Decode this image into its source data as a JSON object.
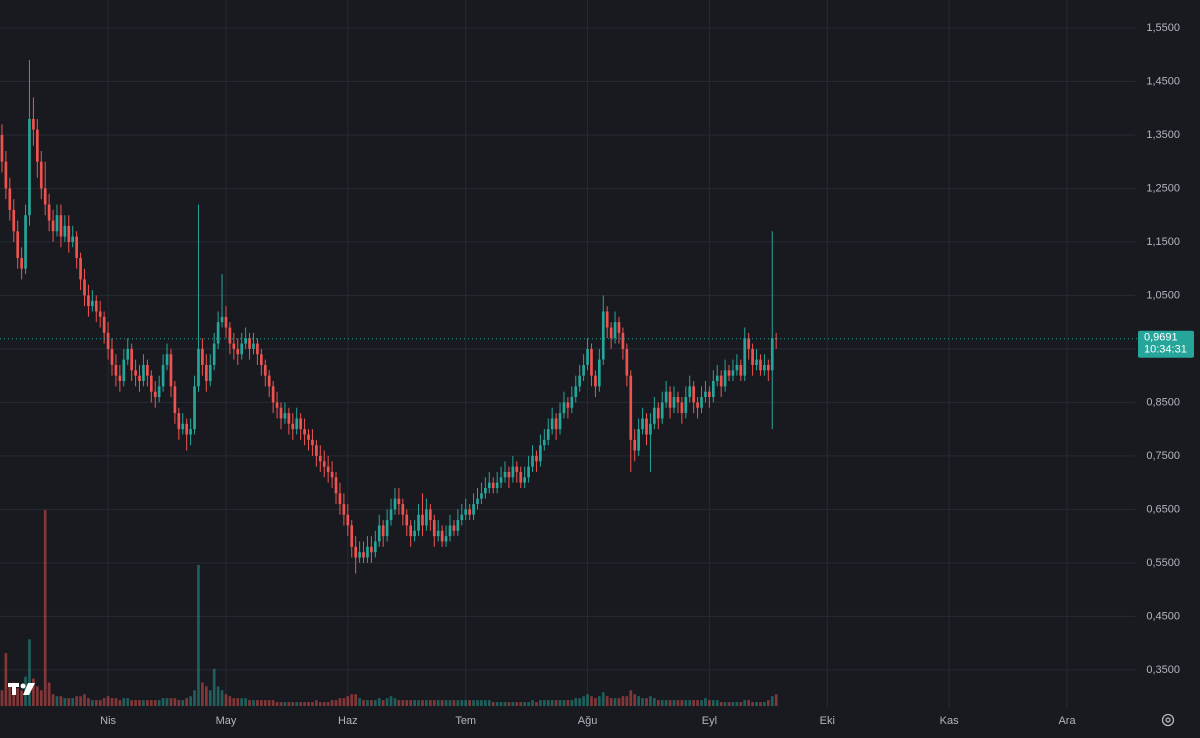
{
  "chart_data": {
    "type": "candlestick",
    "up_color": "#26a69a",
    "down_color": "#ef5350",
    "xlim": [
      0.5,
      289.3
    ],
    "xticks": [
      {
        "value": 28,
        "label": "Nis"
      },
      {
        "value": 58,
        "label": "May"
      },
      {
        "value": 89,
        "label": "Haz"
      },
      {
        "value": 119,
        "label": "Tem"
      },
      {
        "value": 150,
        "label": "Ağu"
      },
      {
        "value": 181,
        "label": "Eyl"
      },
      {
        "value": 211,
        "label": "Eki"
      },
      {
        "value": 242,
        "label": "Kas"
      },
      {
        "value": 272,
        "label": "Ara"
      }
    ],
    "ylim": [
      0.2787,
      1.6023
    ],
    "yticks": [
      {
        "value": 0.35,
        "label": "0,3500"
      },
      {
        "value": 0.45,
        "label": "0,4500"
      },
      {
        "value": 0.55,
        "label": "0,5500"
      },
      {
        "value": 0.65,
        "label": "0,6500"
      },
      {
        "value": 0.75,
        "label": "0,7500"
      },
      {
        "value": 0.85,
        "label": "0,8500"
      },
      {
        "value": 0.95,
        "label": "0,9500"
      },
      {
        "value": 1.05,
        "label": "1,0500"
      },
      {
        "value": 1.15,
        "label": "1,1500"
      },
      {
        "value": 1.25,
        "label": "1,2500"
      },
      {
        "value": 1.35,
        "label": "1,3500"
      },
      {
        "value": 1.45,
        "label": "1,4500"
      },
      {
        "value": 1.55,
        "label": "1,5500"
      }
    ],
    "grid": true,
    "last_price": {
      "value": 0.9691,
      "label": "0,9691"
    },
    "countdown": "10:34:31",
    "candles": [
      [
        1.4,
        1.42,
        1.33,
        1.35,
        6
      ],
      [
        1.35,
        1.37,
        1.28,
        1.3,
        8
      ],
      [
        1.3,
        1.32,
        1.23,
        1.25,
        27
      ],
      [
        1.25,
        1.27,
        1.19,
        1.21,
        10
      ],
      [
        1.21,
        1.23,
        1.15,
        1.17,
        12
      ],
      [
        1.17,
        1.19,
        1.1,
        1.12,
        9
      ],
      [
        1.12,
        1.14,
        1.08,
        1.1,
        8
      ],
      [
        1.1,
        1.22,
        1.09,
        1.2,
        15
      ],
      [
        1.2,
        1.49,
        1.18,
        1.38,
        34
      ],
      [
        1.38,
        1.42,
        1.33,
        1.36,
        14
      ],
      [
        1.36,
        1.38,
        1.27,
        1.3,
        10
      ],
      [
        1.3,
        1.32,
        1.23,
        1.25,
        8
      ],
      [
        1.25,
        1.3,
        1.2,
        1.22,
        100
      ],
      [
        1.22,
        1.24,
        1.17,
        1.19,
        12
      ],
      [
        1.19,
        1.21,
        1.15,
        1.17,
        6
      ],
      [
        1.17,
        1.22,
        1.16,
        1.2,
        5
      ],
      [
        1.2,
        1.22,
        1.14,
        1.16,
        5
      ],
      [
        1.16,
        1.2,
        1.15,
        1.18,
        4
      ],
      [
        1.18,
        1.2,
        1.13,
        1.15,
        4
      ],
      [
        1.15,
        1.18,
        1.14,
        1.16,
        4
      ],
      [
        1.16,
        1.17,
        1.1,
        1.12,
        5
      ],
      [
        1.12,
        1.13,
        1.06,
        1.08,
        5
      ],
      [
        1.08,
        1.1,
        1.03,
        1.05,
        6
      ],
      [
        1.05,
        1.07,
        1.01,
        1.03,
        4
      ],
      [
        1.03,
        1.06,
        1.02,
        1.04,
        3
      ],
      [
        1.04,
        1.05,
        1.0,
        1.02,
        3
      ],
      [
        1.02,
        1.04,
        0.99,
        1.01,
        3
      ],
      [
        1.01,
        1.02,
        0.96,
        0.98,
        4
      ],
      [
        0.98,
        1.0,
        0.93,
        0.95,
        5
      ],
      [
        0.95,
        0.97,
        0.9,
        0.92,
        4
      ],
      [
        0.92,
        0.94,
        0.88,
        0.9,
        4
      ],
      [
        0.9,
        0.92,
        0.87,
        0.89,
        3
      ],
      [
        0.89,
        0.95,
        0.88,
        0.93,
        4
      ],
      [
        0.93,
        0.97,
        0.92,
        0.95,
        4
      ],
      [
        0.95,
        0.96,
        0.89,
        0.91,
        3
      ],
      [
        0.91,
        0.93,
        0.88,
        0.9,
        3
      ],
      [
        0.9,
        0.92,
        0.87,
        0.89,
        3
      ],
      [
        0.89,
        0.94,
        0.88,
        0.92,
        3
      ],
      [
        0.92,
        0.93,
        0.88,
        0.9,
        3
      ],
      [
        0.9,
        0.91,
        0.85,
        0.87,
        3
      ],
      [
        0.87,
        0.89,
        0.84,
        0.86,
        3
      ],
      [
        0.86,
        0.9,
        0.85,
        0.88,
        3
      ],
      [
        0.88,
        0.94,
        0.87,
        0.92,
        4
      ],
      [
        0.92,
        0.96,
        0.91,
        0.94,
        4
      ],
      [
        0.94,
        0.95,
        0.86,
        0.88,
        4
      ],
      [
        0.88,
        0.89,
        0.81,
        0.83,
        4
      ],
      [
        0.83,
        0.84,
        0.78,
        0.8,
        3
      ],
      [
        0.8,
        0.83,
        0.79,
        0.81,
        3
      ],
      [
        0.81,
        0.82,
        0.76,
        0.79,
        4
      ],
      [
        0.79,
        0.82,
        0.77,
        0.8,
        5
      ],
      [
        0.8,
        0.9,
        0.79,
        0.88,
        8
      ],
      [
        0.88,
        1.22,
        0.87,
        0.95,
        72
      ],
      [
        0.95,
        0.97,
        0.9,
        0.92,
        12
      ],
      [
        0.92,
        0.94,
        0.87,
        0.89,
        10
      ],
      [
        0.89,
        0.94,
        0.88,
        0.92,
        8
      ],
      [
        0.92,
        0.98,
        0.91,
        0.96,
        19
      ],
      [
        0.96,
        1.02,
        0.95,
        1.0,
        10
      ],
      [
        1.0,
        1.09,
        0.99,
        1.01,
        8
      ],
      [
        1.01,
        1.03,
        0.97,
        0.99,
        6
      ],
      [
        0.99,
        1.0,
        0.94,
        0.96,
        5
      ],
      [
        0.96,
        0.98,
        0.93,
        0.95,
        4
      ],
      [
        0.95,
        0.97,
        0.92,
        0.94,
        4
      ],
      [
        0.94,
        0.98,
        0.93,
        0.96,
        4
      ],
      [
        0.96,
        0.99,
        0.95,
        0.97,
        4
      ],
      [
        0.97,
        0.98,
        0.93,
        0.95,
        3
      ],
      [
        0.95,
        0.98,
        0.94,
        0.96,
        3
      ],
      [
        0.96,
        0.97,
        0.92,
        0.94,
        3
      ],
      [
        0.94,
        0.95,
        0.9,
        0.92,
        3
      ],
      [
        0.92,
        0.93,
        0.88,
        0.9,
        3
      ],
      [
        0.9,
        0.91,
        0.86,
        0.88,
        3
      ],
      [
        0.88,
        0.89,
        0.83,
        0.85,
        3
      ],
      [
        0.85,
        0.87,
        0.82,
        0.84,
        2
      ],
      [
        0.84,
        0.85,
        0.8,
        0.82,
        2
      ],
      [
        0.82,
        0.85,
        0.81,
        0.83,
        2
      ],
      [
        0.83,
        0.84,
        0.79,
        0.81,
        2
      ],
      [
        0.81,
        0.83,
        0.78,
        0.8,
        2
      ],
      [
        0.8,
        0.84,
        0.79,
        0.82,
        2
      ],
      [
        0.82,
        0.83,
        0.78,
        0.8,
        2
      ],
      [
        0.8,
        0.82,
        0.77,
        0.79,
        2
      ],
      [
        0.79,
        0.8,
        0.76,
        0.78,
        2
      ],
      [
        0.78,
        0.8,
        0.75,
        0.77,
        2
      ],
      [
        0.77,
        0.78,
        0.73,
        0.75,
        3
      ],
      [
        0.75,
        0.77,
        0.72,
        0.74,
        2
      ],
      [
        0.74,
        0.76,
        0.71,
        0.73,
        2
      ],
      [
        0.73,
        0.75,
        0.7,
        0.72,
        2
      ],
      [
        0.72,
        0.74,
        0.69,
        0.71,
        3
      ],
      [
        0.71,
        0.72,
        0.66,
        0.68,
        3
      ],
      [
        0.68,
        0.7,
        0.64,
        0.66,
        4
      ],
      [
        0.66,
        0.68,
        0.62,
        0.64,
        4
      ],
      [
        0.64,
        0.66,
        0.6,
        0.62,
        5
      ],
      [
        0.62,
        0.63,
        0.56,
        0.58,
        6
      ],
      [
        0.58,
        0.6,
        0.53,
        0.56,
        6
      ],
      [
        0.56,
        0.59,
        0.55,
        0.57,
        4
      ],
      [
        0.57,
        0.59,
        0.55,
        0.56,
        3
      ],
      [
        0.56,
        0.6,
        0.55,
        0.58,
        3
      ],
      [
        0.58,
        0.6,
        0.55,
        0.57,
        3
      ],
      [
        0.57,
        0.61,
        0.56,
        0.59,
        3
      ],
      [
        0.59,
        0.64,
        0.58,
        0.62,
        4
      ],
      [
        0.62,
        0.63,
        0.58,
        0.6,
        3
      ],
      [
        0.6,
        0.65,
        0.59,
        0.63,
        4
      ],
      [
        0.63,
        0.67,
        0.62,
        0.65,
        5
      ],
      [
        0.65,
        0.69,
        0.64,
        0.67,
        4
      ],
      [
        0.67,
        0.69,
        0.64,
        0.66,
        3
      ],
      [
        0.66,
        0.67,
        0.62,
        0.64,
        3
      ],
      [
        0.64,
        0.65,
        0.6,
        0.62,
        3
      ],
      [
        0.62,
        0.63,
        0.58,
        0.6,
        3
      ],
      [
        0.6,
        0.63,
        0.59,
        0.61,
        3
      ],
      [
        0.61,
        0.66,
        0.6,
        0.64,
        3
      ],
      [
        0.64,
        0.68,
        0.6,
        0.62,
        3
      ],
      [
        0.62,
        0.67,
        0.61,
        0.65,
        3
      ],
      [
        0.65,
        0.66,
        0.61,
        0.63,
        3
      ],
      [
        0.63,
        0.64,
        0.58,
        0.6,
        3
      ],
      [
        0.6,
        0.63,
        0.59,
        0.61,
        3
      ],
      [
        0.61,
        0.62,
        0.58,
        0.59,
        3
      ],
      [
        0.59,
        0.62,
        0.58,
        0.6,
        3
      ],
      [
        0.6,
        0.64,
        0.59,
        0.62,
        3
      ],
      [
        0.62,
        0.63,
        0.6,
        0.61,
        3
      ],
      [
        0.61,
        0.65,
        0.6,
        0.63,
        3
      ],
      [
        0.63,
        0.66,
        0.62,
        0.64,
        3
      ],
      [
        0.64,
        0.67,
        0.63,
        0.65,
        3
      ],
      [
        0.65,
        0.66,
        0.63,
        0.64,
        3
      ],
      [
        0.64,
        0.68,
        0.63,
        0.66,
        3
      ],
      [
        0.66,
        0.69,
        0.65,
        0.67,
        3
      ],
      [
        0.67,
        0.7,
        0.66,
        0.68,
        3
      ],
      [
        0.68,
        0.71,
        0.67,
        0.69,
        3
      ],
      [
        0.69,
        0.72,
        0.68,
        0.7,
        3
      ],
      [
        0.7,
        0.71,
        0.68,
        0.69,
        2
      ],
      [
        0.69,
        0.72,
        0.68,
        0.7,
        2
      ],
      [
        0.7,
        0.73,
        0.69,
        0.71,
        2
      ],
      [
        0.71,
        0.74,
        0.7,
        0.72,
        2
      ],
      [
        0.72,
        0.73,
        0.69,
        0.71,
        2
      ],
      [
        0.71,
        0.75,
        0.7,
        0.73,
        2
      ],
      [
        0.73,
        0.74,
        0.7,
        0.72,
        2
      ],
      [
        0.72,
        0.73,
        0.69,
        0.7,
        2
      ],
      [
        0.7,
        0.73,
        0.69,
        0.71,
        2
      ],
      [
        0.71,
        0.75,
        0.7,
        0.73,
        2
      ],
      [
        0.73,
        0.77,
        0.72,
        0.75,
        3
      ],
      [
        0.75,
        0.76,
        0.72,
        0.74,
        2
      ],
      [
        0.74,
        0.79,
        0.73,
        0.77,
        3
      ],
      [
        0.77,
        0.8,
        0.76,
        0.78,
        3
      ],
      [
        0.78,
        0.82,
        0.77,
        0.8,
        3
      ],
      [
        0.8,
        0.84,
        0.79,
        0.82,
        3
      ],
      [
        0.82,
        0.83,
        0.78,
        0.8,
        3
      ],
      [
        0.8,
        0.85,
        0.79,
        0.83,
        3
      ],
      [
        0.83,
        0.87,
        0.82,
        0.85,
        3
      ],
      [
        0.85,
        0.86,
        0.82,
        0.84,
        3
      ],
      [
        0.84,
        0.88,
        0.83,
        0.86,
        3
      ],
      [
        0.86,
        0.9,
        0.85,
        0.88,
        4
      ],
      [
        0.88,
        0.92,
        0.87,
        0.9,
        4
      ],
      [
        0.9,
        0.94,
        0.89,
        0.92,
        5
      ],
      [
        0.92,
        0.97,
        0.91,
        0.95,
        6
      ],
      [
        0.95,
        0.96,
        0.88,
        0.9,
        5
      ],
      [
        0.9,
        0.91,
        0.86,
        0.88,
        4
      ],
      [
        0.88,
        0.95,
        0.87,
        0.93,
        5
      ],
      [
        0.93,
        1.05,
        0.92,
        1.02,
        7
      ],
      [
        1.02,
        1.03,
        0.97,
        0.99,
        5
      ],
      [
        0.99,
        1.0,
        0.95,
        0.97,
        4
      ],
      [
        0.97,
        1.02,
        0.96,
        1.0,
        4
      ],
      [
        1.0,
        1.01,
        0.96,
        0.98,
        4
      ],
      [
        0.98,
        0.99,
        0.93,
        0.95,
        5
      ],
      [
        0.95,
        0.96,
        0.88,
        0.9,
        5
      ],
      [
        0.9,
        0.91,
        0.72,
        0.78,
        8
      ],
      [
        0.78,
        0.8,
        0.74,
        0.76,
        6
      ],
      [
        0.76,
        0.82,
        0.75,
        0.8,
        5
      ],
      [
        0.8,
        0.84,
        0.79,
        0.82,
        4
      ],
      [
        0.82,
        0.83,
        0.77,
        0.79,
        4
      ],
      [
        0.79,
        0.83,
        0.72,
        0.81,
        5
      ],
      [
        0.81,
        0.86,
        0.8,
        0.84,
        4
      ],
      [
        0.84,
        0.85,
        0.8,
        0.82,
        3
      ],
      [
        0.82,
        0.87,
        0.81,
        0.85,
        3
      ],
      [
        0.85,
        0.89,
        0.84,
        0.87,
        3
      ],
      [
        0.87,
        0.88,
        0.82,
        0.84,
        3
      ],
      [
        0.84,
        0.88,
        0.83,
        0.86,
        3
      ],
      [
        0.86,
        0.87,
        0.83,
        0.85,
        3
      ],
      [
        0.85,
        0.86,
        0.81,
        0.83,
        3
      ],
      [
        0.83,
        0.88,
        0.82,
        0.86,
        3
      ],
      [
        0.86,
        0.9,
        0.85,
        0.88,
        3
      ],
      [
        0.88,
        0.89,
        0.83,
        0.85,
        3
      ],
      [
        0.85,
        0.86,
        0.82,
        0.84,
        3
      ],
      [
        0.84,
        0.88,
        0.83,
        0.86,
        3
      ],
      [
        0.86,
        0.89,
        0.85,
        0.87,
        4
      ],
      [
        0.87,
        0.88,
        0.84,
        0.86,
        3
      ],
      [
        0.86,
        0.91,
        0.85,
        0.89,
        3
      ],
      [
        0.89,
        0.92,
        0.88,
        0.9,
        3
      ],
      [
        0.9,
        0.91,
        0.86,
        0.88,
        2
      ],
      [
        0.88,
        0.93,
        0.87,
        0.91,
        2
      ],
      [
        0.91,
        0.92,
        0.89,
        0.9,
        2
      ],
      [
        0.9,
        0.93,
        0.89,
        0.91,
        2
      ],
      [
        0.91,
        0.94,
        0.9,
        0.92,
        2
      ],
      [
        0.92,
        0.93,
        0.89,
        0.9,
        2
      ],
      [
        0.9,
        0.99,
        0.89,
        0.97,
        3
      ],
      [
        0.97,
        0.98,
        0.93,
        0.95,
        3
      ],
      [
        0.95,
        0.96,
        0.9,
        0.92,
        2
      ],
      [
        0.92,
        0.95,
        0.91,
        0.93,
        2
      ],
      [
        0.93,
        0.94,
        0.9,
        0.91,
        2
      ],
      [
        0.91,
        0.94,
        0.9,
        0.92,
        2
      ],
      [
        0.92,
        0.93,
        0.89,
        0.91,
        3
      ],
      [
        0.91,
        1.17,
        0.8,
        0.97,
        5
      ],
      [
        0.97,
        0.98,
        0.95,
        0.9691,
        6
      ]
    ]
  }
}
